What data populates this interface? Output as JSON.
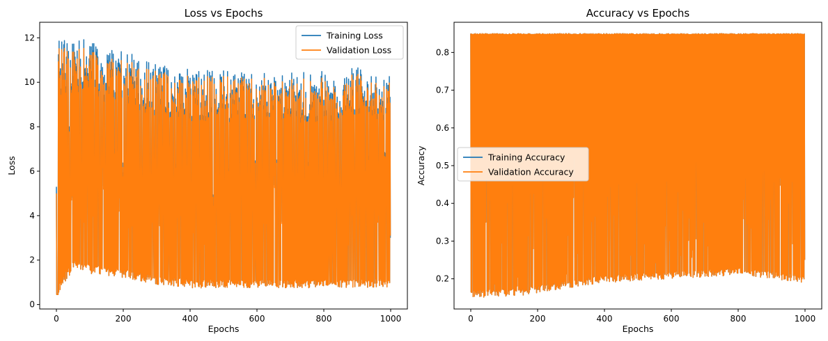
{
  "chart_data": [
    {
      "type": "line",
      "title": "Loss vs Epochs",
      "xlabel": "Epochs",
      "ylabel": "Loss",
      "xlim": [
        -50,
        1050
      ],
      "ylim": [
        -0.2,
        12.7
      ],
      "xticks": [
        0,
        200,
        400,
        600,
        800,
        1000
      ],
      "yticks": [
        0,
        2,
        4,
        6,
        8,
        10,
        12
      ],
      "grid": false,
      "legend_position": "upper right",
      "series": [
        {
          "name": "Training Loss",
          "color": "#1f77b4",
          "start": 5.3,
          "peaks": [
            [
              10,
              12.05
            ],
            [
              100,
              11.9
            ],
            [
              200,
              11.4
            ],
            [
              300,
              10.9
            ],
            [
              400,
              10.6
            ],
            [
              500,
              10.55
            ],
            [
              600,
              10.4
            ],
            [
              700,
              10.5
            ],
            [
              800,
              10.5
            ],
            [
              900,
              10.8
            ],
            [
              995,
              10.6
            ]
          ],
          "troughs": [
            [
              5,
              0.45
            ],
            [
              50,
              1.6
            ],
            [
              100,
              1.4
            ],
            [
              200,
              1.2
            ],
            [
              300,
              0.9
            ],
            [
              400,
              0.75
            ],
            [
              500,
              0.75
            ],
            [
              600,
              0.75
            ],
            [
              700,
              0.75
            ],
            [
              800,
              0.75
            ],
            [
              900,
              0.75
            ],
            [
              1000,
              0.8
            ]
          ],
          "end": 3.0
        },
        {
          "name": "Validation Loss",
          "color": "#ff7f0e",
          "start": 5.0,
          "peaks": [
            [
              10,
              11.7
            ],
            [
              100,
              11.5
            ],
            [
              200,
              11.0
            ],
            [
              300,
              10.6
            ],
            [
              400,
              10.3
            ],
            [
              500,
              10.3
            ],
            [
              600,
              10.2
            ],
            [
              700,
              10.2
            ],
            [
              800,
              10.2
            ],
            [
              900,
              10.5
            ],
            [
              995,
              10.3
            ]
          ],
          "troughs": [
            [
              5,
              0.45
            ],
            [
              50,
              1.6
            ],
            [
              100,
              1.4
            ],
            [
              200,
              1.2
            ],
            [
              300,
              0.9
            ],
            [
              400,
              0.75
            ],
            [
              500,
              0.75
            ],
            [
              600,
              0.75
            ],
            [
              700,
              0.75
            ],
            [
              800,
              0.75
            ],
            [
              900,
              0.75
            ],
            [
              1000,
              0.8
            ]
          ],
          "end": 3.1
        }
      ]
    },
    {
      "type": "line",
      "title": "Accuracy vs Epochs",
      "xlabel": "Epochs",
      "ylabel": "Accuracy",
      "xlim": [
        -50,
        1050
      ],
      "ylim": [
        0.12,
        0.88
      ],
      "xticks": [
        0,
        200,
        400,
        600,
        800,
        1000
      ],
      "yticks": [
        0.2,
        0.3,
        0.4,
        0.5,
        0.6,
        0.7,
        0.8
      ],
      "grid": false,
      "legend_position": "center left",
      "series": [
        {
          "name": "Training Accuracy",
          "color": "#1f77b4",
          "high": 0.85,
          "troughs": [
            [
              0,
              0.15
            ],
            [
              150,
              0.155
            ],
            [
              250,
              0.17
            ],
            [
              400,
              0.19
            ],
            [
              600,
              0.2
            ],
            [
              800,
              0.21
            ],
            [
              1000,
              0.19
            ]
          ],
          "end": 0.25
        },
        {
          "name": "Validation Accuracy",
          "color": "#ff7f0e",
          "high": 0.85,
          "troughs": [
            [
              0,
              0.15
            ],
            [
              150,
              0.155
            ],
            [
              250,
              0.17
            ],
            [
              400,
              0.19
            ],
            [
              600,
              0.2
            ],
            [
              800,
              0.21
            ],
            [
              1000,
              0.19
            ]
          ],
          "end": 0.25
        }
      ]
    }
  ]
}
